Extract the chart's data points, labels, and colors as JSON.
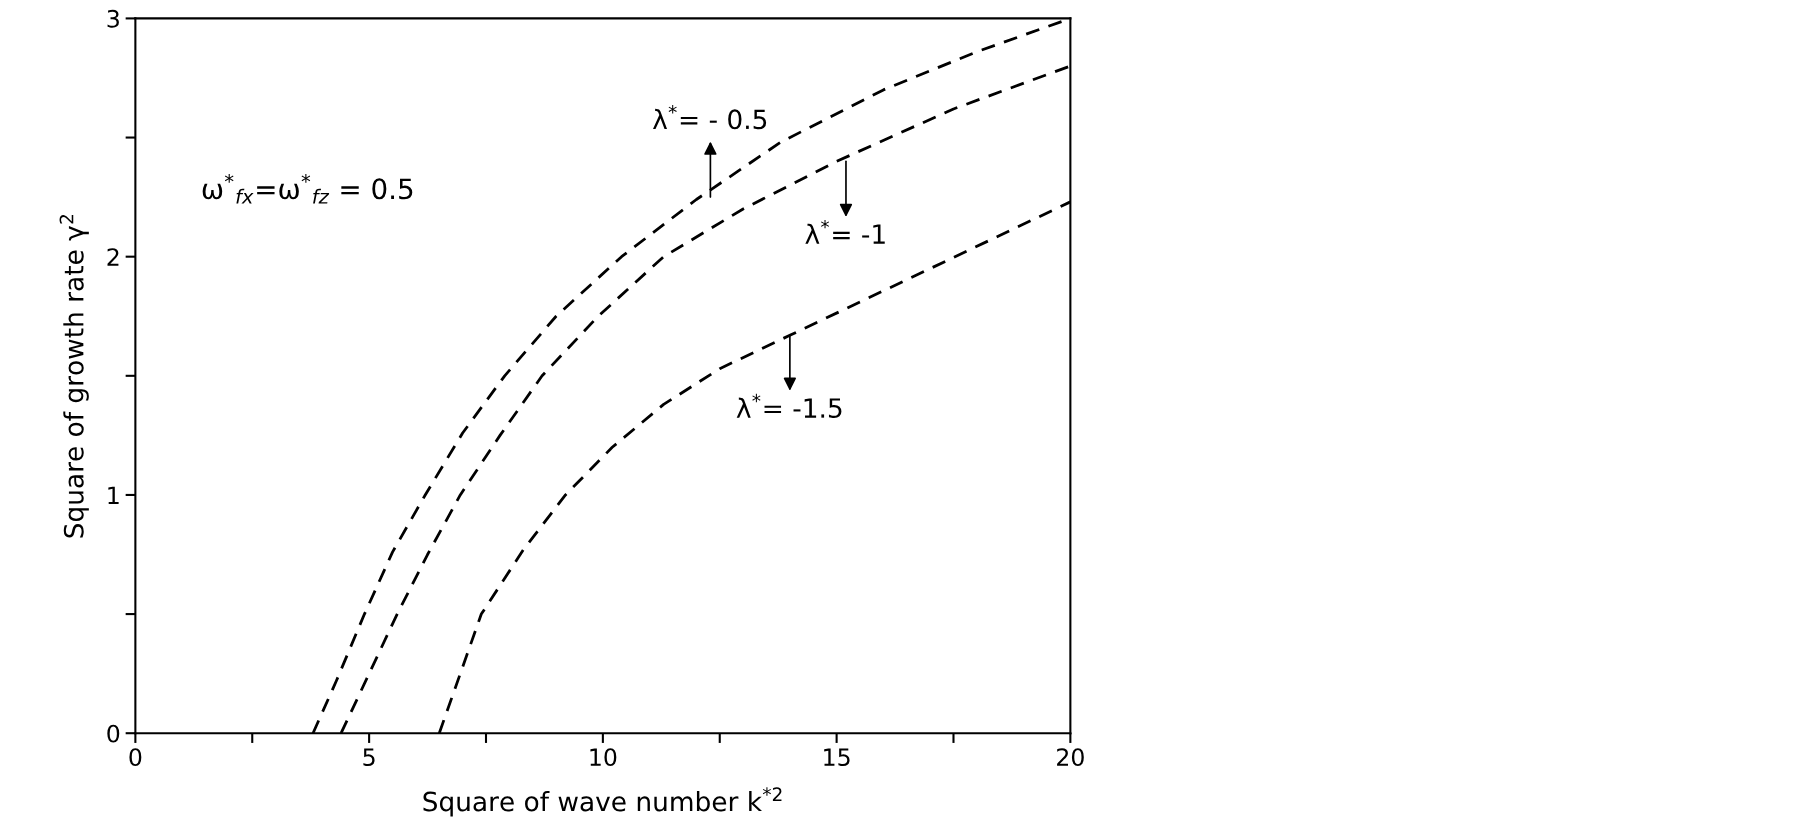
{
  "chart_data": {
    "type": "line",
    "xlabel": "Square of wave number k$^{*2}$",
    "ylabel": "Square of growth rate γ$^{2}$",
    "series": [
      {
        "color": "#000000",
        "x": [
          3.8,
          4.3,
          4.9,
          5.5,
          6.2,
          7,
          7.9,
          9,
          10.4,
          12,
          13.8,
          16,
          18,
          20
        ],
        "values": [
          0,
          0.22,
          0.5,
          0.76,
          1,
          1.26,
          1.5,
          1.75,
          2,
          2.24,
          2.48,
          2.7,
          2.86,
          3.0
        ]
      },
      {
        "color": "#000000",
        "x": [
          4.4,
          5,
          5.6,
          6.25,
          6.95,
          7.8,
          8.7,
          9.9,
          11.3,
          13,
          15,
          17.5,
          20
        ],
        "values": [
          0,
          0.25,
          0.5,
          0.75,
          1,
          1.25,
          1.5,
          1.75,
          2,
          2.2,
          2.4,
          2.62,
          2.8
        ]
      },
      {
        "color": "#000000",
        "x": [
          6.5,
          7.4,
          8.3,
          9.2,
          10.2,
          11.3,
          12.5,
          14,
          15.5,
          17,
          18.5,
          20
        ],
        "values": [
          0,
          0.5,
          0.77,
          1,
          1.2,
          1.38,
          1.53,
          1.67,
          1.81,
          1.95,
          2.09,
          2.23
        ]
      }
    ],
    "line_style": "dashed",
    "marker": "none",
    "grid": false,
    "legend": false,
    "xlim": [
      0,
      20
    ],
    "ylim": [
      0,
      3
    ],
    "xticks": [
      0,
      {
        "value": 2.5,
        "label": null
      },
      5,
      {
        "value": 7.5,
        "label": null
      },
      10,
      {
        "value": 12.5,
        "label": null
      },
      15,
      {
        "value": 17.5,
        "label": null
      },
      20
    ],
    "yticks": [
      0,
      {
        "value": 0.5,
        "label": null
      },
      1,
      {
        "value": 1.5,
        "label": null
      },
      2,
      {
        "value": 2.5,
        "label": null
      },
      3
    ],
    "annotations": [
      {
        "text": "λ$^{*}$= - 0.5",
        "x": 12.3,
        "y": 2.25
      },
      {
        "text": "λ$^{*}$= -1",
        "x": 15.2,
        "y": 2.4
      },
      {
        "text": "λ$^{*}$= -1.5",
        "x": 14,
        "y": 1.67
      },
      "ω$^{*}$$_{fx}$=ω$^{*}$$_{fz}$ = 0.5"
    ]
  }
}
